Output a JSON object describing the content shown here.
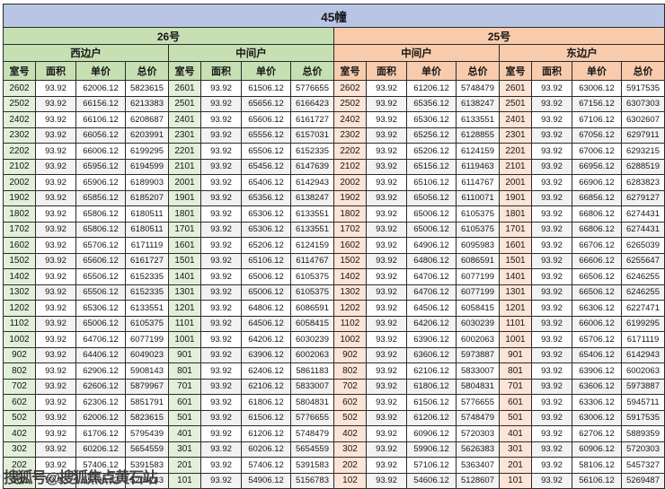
{
  "title": "45幢",
  "watermark": "搜狐号@搜狐焦点黄石站",
  "columns": [
    "室号",
    "面积",
    "单价",
    "总价"
  ],
  "colors": {
    "title_bar": "#b9c5e4",
    "green_header": "#c6e0b4",
    "green_room": "#e2efda",
    "peach_header": "#f8cbad",
    "peach_room": "#fce4d6",
    "border": "#2b2b2b",
    "stripe": "#f2f2f2"
  },
  "sections": [
    {
      "label": "26号",
      "header_color": "#c6e0b4",
      "room_color": "#e2efda",
      "units": [
        {
          "label": "西边户",
          "rows": [
            [
              "2602",
              "93.92",
              "62006.12",
              "5823615"
            ],
            [
              "2502",
              "93.92",
              "66156.12",
              "6213383"
            ],
            [
              "2402",
              "93.92",
              "66106.12",
              "6208687"
            ],
            [
              "2302",
              "93.92",
              "66056.12",
              "6203991"
            ],
            [
              "2202",
              "93.92",
              "66006.12",
              "6199295"
            ],
            [
              "2102",
              "93.92",
              "65956.12",
              "6194599"
            ],
            [
              "2002",
              "93.92",
              "65906.12",
              "6189903"
            ],
            [
              "1902",
              "93.92",
              "65856.12",
              "6185207"
            ],
            [
              "1802",
              "93.92",
              "65806.12",
              "6180511"
            ],
            [
              "1702",
              "93.92",
              "65806.12",
              "6180511"
            ],
            [
              "1602",
              "93.92",
              "65706.12",
              "6171119"
            ],
            [
              "1502",
              "93.92",
              "65606.12",
              "6161727"
            ],
            [
              "1402",
              "93.92",
              "65506.12",
              "6152335"
            ],
            [
              "1302",
              "93.92",
              "65506.12",
              "6152335"
            ],
            [
              "1202",
              "93.92",
              "65306.12",
              "6133551"
            ],
            [
              "1102",
              "93.92",
              "65006.12",
              "6105375"
            ],
            [
              "1002",
              "93.92",
              "64706.12",
              "6077199"
            ],
            [
              "902",
              "93.92",
              "64406.12",
              "6049023"
            ],
            [
              "802",
              "93.92",
              "62906.12",
              "5908143"
            ],
            [
              "702",
              "93.92",
              "62606.12",
              "5879967"
            ],
            [
              "602",
              "93.92",
              "62306.12",
              "5851791"
            ],
            [
              "502",
              "93.92",
              "62006.12",
              "5823615"
            ],
            [
              "402",
              "93.92",
              "61706.12",
              "5795439"
            ],
            [
              "302",
              "93.92",
              "60206.12",
              "5654559"
            ],
            [
              "202",
              "93.92",
              "57406.12",
              "5391583"
            ],
            [
              "102",
              "93.92",
              "55406.12",
              "5203743"
            ]
          ]
        },
        {
          "label": "中间户",
          "rows": [
            [
              "2601",
              "93.92",
              "61506.12",
              "5776655"
            ],
            [
              "2501",
              "93.92",
              "65656.12",
              "6166423"
            ],
            [
              "2401",
              "93.92",
              "65606.12",
              "6161727"
            ],
            [
              "2301",
              "93.92",
              "65556.12",
              "6157031"
            ],
            [
              "2201",
              "93.92",
              "65506.12",
              "6152335"
            ],
            [
              "2101",
              "93.92",
              "65456.12",
              "6147639"
            ],
            [
              "2001",
              "93.92",
              "65406.12",
              "6142943"
            ],
            [
              "1901",
              "93.92",
              "65356.12",
              "6138247"
            ],
            [
              "1801",
              "93.92",
              "65306.12",
              "6133551"
            ],
            [
              "1701",
              "93.92",
              "65306.12",
              "6133551"
            ],
            [
              "1601",
              "93.92",
              "65206.12",
              "6124159"
            ],
            [
              "1501",
              "93.92",
              "65106.12",
              "6114767"
            ],
            [
              "1401",
              "93.92",
              "65006.12",
              "6105375"
            ],
            [
              "1301",
              "93.92",
              "65006.12",
              "6105375"
            ],
            [
              "1201",
              "93.92",
              "64806.12",
              "6086591"
            ],
            [
              "1101",
              "93.92",
              "64506.12",
              "6058415"
            ],
            [
              "1001",
              "93.92",
              "64206.12",
              "6030239"
            ],
            [
              "901",
              "93.92",
              "63906.12",
              "6002063"
            ],
            [
              "801",
              "93.92",
              "62406.12",
              "5861183"
            ],
            [
              "701",
              "93.92",
              "62106.12",
              "5833007"
            ],
            [
              "601",
              "93.92",
              "61806.12",
              "5804831"
            ],
            [
              "501",
              "93.92",
              "61506.12",
              "5776655"
            ],
            [
              "401",
              "93.92",
              "61206.12",
              "5748479"
            ],
            [
              "301",
              "93.92",
              "60206.12",
              "5654559"
            ],
            [
              "201",
              "93.92",
              "57406.12",
              "5391583"
            ],
            [
              "101",
              "93.92",
              "54906.12",
              "5156783"
            ]
          ]
        }
      ]
    },
    {
      "label": "25号",
      "header_color": "#f8cbad",
      "room_color": "#fce4d6",
      "units": [
        {
          "label": "中间户",
          "rows": [
            [
              "2602",
              "93.92",
              "61206.12",
              "5748479"
            ],
            [
              "2502",
              "93.92",
              "65356.12",
              "6138247"
            ],
            [
              "2402",
              "93.92",
              "65306.12",
              "6133551"
            ],
            [
              "2302",
              "93.92",
              "65256.12",
              "6128855"
            ],
            [
              "2202",
              "93.92",
              "65206.12",
              "6124159"
            ],
            [
              "2102",
              "93.92",
              "65156.12",
              "6119463"
            ],
            [
              "2002",
              "93.92",
              "65106.12",
              "6114767"
            ],
            [
              "1902",
              "93.92",
              "65056.12",
              "6110071"
            ],
            [
              "1802",
              "93.92",
              "65006.12",
              "6105375"
            ],
            [
              "1702",
              "93.92",
              "65006.12",
              "6105375"
            ],
            [
              "1602",
              "93.92",
              "64906.12",
              "6095983"
            ],
            [
              "1502",
              "93.92",
              "64806.12",
              "6086591"
            ],
            [
              "1402",
              "93.92",
              "64706.12",
              "6077199"
            ],
            [
              "1302",
              "93.92",
              "64706.12",
              "6077199"
            ],
            [
              "1202",
              "93.92",
              "64506.12",
              "6058415"
            ],
            [
              "1102",
              "93.92",
              "64206.12",
              "6030239"
            ],
            [
              "1002",
              "93.92",
              "63906.12",
              "6002063"
            ],
            [
              "902",
              "93.92",
              "63606.12",
              "5973887"
            ],
            [
              "802",
              "93.92",
              "62106.12",
              "5833007"
            ],
            [
              "702",
              "93.92",
              "61806.12",
              "5804831"
            ],
            [
              "602",
              "93.92",
              "61506.12",
              "5776655"
            ],
            [
              "502",
              "93.92",
              "61206.12",
              "5748479"
            ],
            [
              "402",
              "93.92",
              "60906.12",
              "5720303"
            ],
            [
              "302",
              "93.92",
              "59906.12",
              "5626383"
            ],
            [
              "202",
              "93.92",
              "57106.12",
              "5363407"
            ],
            [
              "102",
              "93.92",
              "54606.12",
              "5128607"
            ]
          ]
        },
        {
          "label": "东边户",
          "rows": [
            [
              "2601",
              "93.92",
              "63006.12",
              "5917535"
            ],
            [
              "2501",
              "93.92",
              "67156.12",
              "6307303"
            ],
            [
              "2401",
              "93.92",
              "67106.12",
              "6302607"
            ],
            [
              "2301",
              "93.92",
              "67056.12",
              "6297911"
            ],
            [
              "2201",
              "93.92",
              "67006.12",
              "6293215"
            ],
            [
              "2101",
              "93.92",
              "66956.12",
              "6288519"
            ],
            [
              "2001",
              "93.92",
              "66906.12",
              "6283823"
            ],
            [
              "1901",
              "93.92",
              "66856.12",
              "6279127"
            ],
            [
              "1801",
              "93.92",
              "66806.12",
              "6274431"
            ],
            [
              "1701",
              "93.92",
              "66806.12",
              "6274431"
            ],
            [
              "1601",
              "93.92",
              "66706.12",
              "6265039"
            ],
            [
              "1501",
              "93.92",
              "66606.12",
              "6255647"
            ],
            [
              "1401",
              "93.92",
              "66506.12",
              "6246255"
            ],
            [
              "1301",
              "93.92",
              "66506.12",
              "6246255"
            ],
            [
              "1201",
              "93.92",
              "66306.12",
              "6227471"
            ],
            [
              "1101",
              "93.92",
              "66006.12",
              "6199295"
            ],
            [
              "1001",
              "93.92",
              "65706.12",
              "6171119"
            ],
            [
              "901",
              "93.92",
              "65406.12",
              "6142943"
            ],
            [
              "801",
              "93.92",
              "63906.12",
              "6002063"
            ],
            [
              "701",
              "93.92",
              "63606.12",
              "5973887"
            ],
            [
              "601",
              "93.92",
              "63306.12",
              "5945711"
            ],
            [
              "501",
              "93.92",
              "63006.12",
              "5917535"
            ],
            [
              "401",
              "93.92",
              "62706.12",
              "5889359"
            ],
            [
              "301",
              "93.92",
              "60906.12",
              "5720303"
            ],
            [
              "201",
              "93.92",
              "58106.12",
              "5457327"
            ],
            [
              "101",
              "93.92",
              "56106.12",
              "5269487"
            ]
          ]
        }
      ]
    }
  ]
}
